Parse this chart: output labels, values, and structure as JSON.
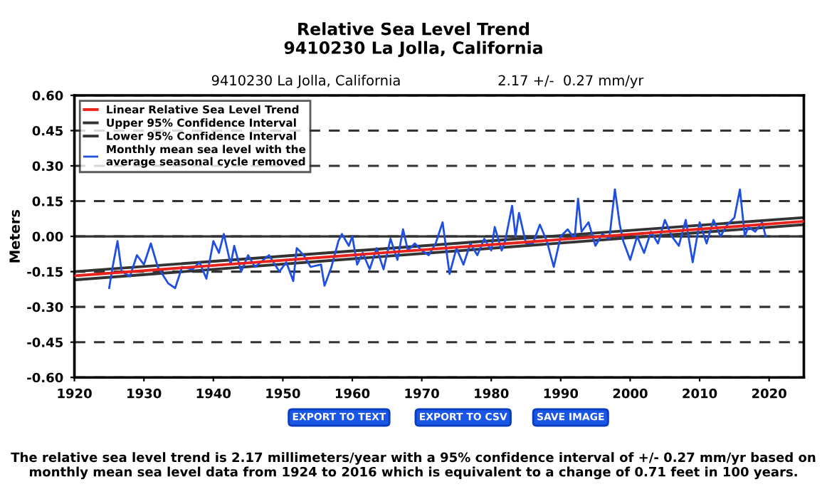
{
  "chart_data": {
    "type": "line",
    "title": "Relative Sea Level Trend\n9410230 La Jolla, California",
    "subtitle": "9410230 La Jolla, California",
    "ylabel": "Meters",
    "annotations": [
      "2.17 +/-  0.27 mm/yr",
      "EXPORT TO TEXT",
      "EXPORT TO CSV",
      "SAVE IMAGE",
      "The relative sea level trend is 2.17 millimeters/year with a 95% confidence interval of +/- 0.27 mm/yr based on monthly mean sea level data from 1924 to 2016 which is equivalent to a change of 0.71 feet in 100 years."
    ],
    "xlim": [
      1920,
      2025
    ],
    "xticks": [
      1920,
      1930,
      1940,
      1950,
      1960,
      1970,
      1980,
      1990,
      2000,
      2010,
      2020
    ],
    "ylim": [
      -0.6,
      0.6
    ],
    "yticks": [
      {
        "value": -0.6,
        "label": "-0.60"
      },
      {
        "value": -0.45,
        "label": "-0.45"
      },
      {
        "value": -0.3,
        "label": "-0.30"
      },
      {
        "value": -0.15,
        "label": "-0.15"
      },
      {
        "value": 0,
        "label": "0.00"
      },
      {
        "value": 0.15,
        "label": "0.15"
      },
      {
        "value": 0.3,
        "label": "0.30"
      },
      {
        "value": 0.45,
        "label": "0.45"
      },
      {
        "value": 0.6,
        "label": "0.60"
      }
    ],
    "grid": "y",
    "legend": "top left",
    "line_style": "solid",
    "marker": "none",
    "ref_lines": [
      {
        "axis": "y",
        "value": 0,
        "color": "#333333",
        "line_style": "solid"
      }
    ],
    "series": [
      {
        "name": "Linear Relative Sea Level Trend",
        "color": "#e8231e",
        "x": [
          1920,
          2025
        ],
        "values": [
          -0.168,
          0.064
        ]
      },
      {
        "name": "Upper 95% Confidence Interval",
        "color": "#333333",
        "x": [
          1920,
          2025
        ],
        "values": [
          -0.15,
          0.08
        ]
      },
      {
        "name": "Lower 95% Confidence Interval",
        "color": "#333333",
        "x": [
          1920,
          2025
        ],
        "values": [
          -0.185,
          0.05
        ]
      },
      {
        "name": "Monthly mean sea level with the\naverage seasonal cycle removed",
        "color": "#1f4fe0",
        "x": [
          1925,
          1925.5,
          1926.2,
          1926.8,
          1928,
          1929,
          1930,
          1931,
          1932,
          1933.5,
          1934.5,
          1935.5,
          1937,
          1938,
          1939,
          1940,
          1940.8,
          1941.5,
          1942.5,
          1943,
          1944,
          1945,
          1946,
          1948,
          1949.5,
          1950.5,
          1951.5,
          1952,
          1953,
          1954,
          1955.5,
          1956,
          1957,
          1958,
          1958.5,
          1959.5,
          1960,
          1960.7,
          1961.5,
          1962.5,
          1963.5,
          1964.5,
          1965.5,
          1966.5,
          1967.3,
          1968,
          1969,
          1970,
          1971,
          1972,
          1973,
          1974,
          1975,
          1976,
          1977,
          1978,
          1979,
          1980,
          1980.5,
          1981.5,
          1982,
          1983,
          1983.5,
          1984,
          1985,
          1986,
          1987,
          1988,
          1989,
          1990,
          1991,
          1992,
          1992.5,
          1993,
          1994,
          1995,
          1996,
          1997,
          1997.8,
          1998.5,
          1999,
          2000,
          2001,
          2002,
          2003,
          2004,
          2005,
          2006,
          2007,
          2008,
          2009,
          2010,
          2011,
          2012,
          2013,
          2014,
          2015,
          2015.8,
          2016.5,
          2017,
          2018,
          2019,
          2019.5
        ],
        "values": [
          -0.22,
          -0.13,
          -0.02,
          -0.15,
          -0.17,
          -0.08,
          -0.12,
          -0.03,
          -0.13,
          -0.2,
          -0.22,
          -0.13,
          -0.14,
          -0.11,
          -0.18,
          -0.02,
          -0.07,
          0.01,
          -0.12,
          -0.04,
          -0.15,
          -0.08,
          -0.13,
          -0.08,
          -0.15,
          -0.11,
          -0.19,
          -0.05,
          -0.08,
          -0.13,
          -0.12,
          -0.21,
          -0.13,
          -0.02,
          0.01,
          -0.04,
          0.0,
          -0.12,
          -0.07,
          -0.14,
          -0.05,
          -0.14,
          -0.01,
          -0.1,
          0.03,
          -0.06,
          -0.03,
          -0.06,
          -0.08,
          -0.03,
          0.06,
          -0.16,
          -0.05,
          -0.12,
          -0.03,
          -0.08,
          -0.01,
          -0.06,
          0.04,
          -0.06,
          -0.02,
          0.13,
          0.0,
          0.1,
          -0.03,
          -0.03,
          0.05,
          -0.02,
          -0.13,
          0.0,
          0.03,
          -0.01,
          0.16,
          0.02,
          0.06,
          -0.04,
          0.01,
          -0.01,
          0.2,
          0.05,
          -0.02,
          -0.1,
          0.0,
          -0.07,
          0.02,
          -0.03,
          0.07,
          0.0,
          -0.04,
          0.07,
          -0.11,
          0.06,
          -0.03,
          0.07,
          0.0,
          0.05,
          0.08,
          0.2,
          0.0,
          0.04,
          0.02,
          0.06,
          0.0
        ]
      }
    ]
  }
}
